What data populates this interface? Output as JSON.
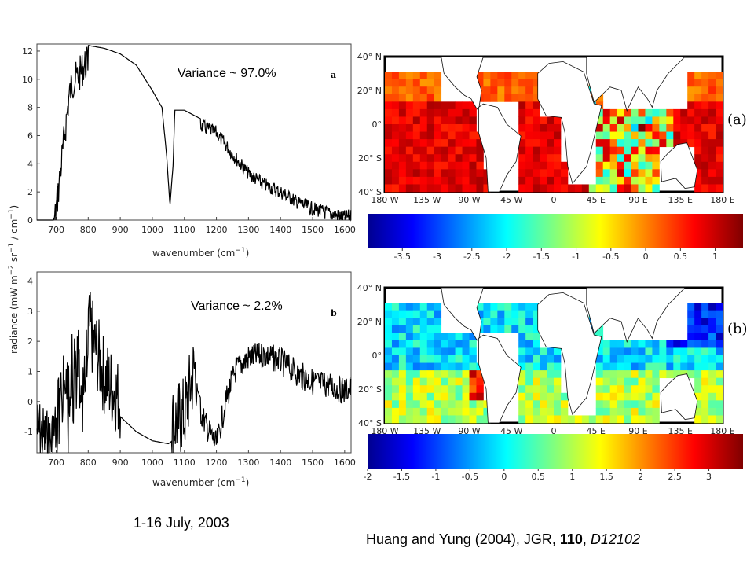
{
  "chart_data": [
    {
      "type": "line",
      "panel": "a",
      "annotation": "Variance ~ 97.0%",
      "xlabel_text": "wavenumber (cm",
      "xlabel_exp": "−1",
      "xlabel_close": ")",
      "xlim": [
        640,
        1620
      ],
      "ylim": [
        0,
        12.5
      ],
      "xticks": [
        "700",
        "800",
        "900",
        "1000",
        "1100",
        "1200",
        "1300",
        "1400",
        "1500",
        "1600"
      ],
      "yticks": [
        "0",
        "2",
        "4",
        "6",
        "8",
        "10",
        "12"
      ],
      "series": [
        {
          "x": [
            640,
            688,
            700,
            720,
            740,
            750,
            770,
            790,
            800,
            850,
            900,
            950,
            1000,
            1030,
            1045,
            1055,
            1065,
            1070,
            1100,
            1150,
            1200,
            1250,
            1300,
            1350,
            1400,
            1450,
            1500,
            1550,
            1600,
            1620
          ],
          "values": [
            0,
            0,
            2,
            6,
            10,
            11,
            11.5,
            12.3,
            12.4,
            12.2,
            11.8,
            11,
            9.2,
            8,
            4.5,
            1,
            4,
            7.8,
            7.8,
            7.2,
            6.7,
            5.2,
            3.8,
            3,
            2.5,
            1.8,
            1.3,
            1,
            0.7,
            0.8
          ]
        }
      ]
    },
    {
      "type": "line",
      "panel": "b",
      "annotation": "Variance ~ 2.2%",
      "ylabel_html": "radiance (mW m<sup>−2</sup> sr<sup>−1</sup> / cm<sup>−1</sup>)",
      "xlabel_text": "wavenumber (cm",
      "xlabel_exp": "−1",
      "xlabel_close": ")",
      "xlim": [
        640,
        1620
      ],
      "ylim": [
        -1.7,
        4.3
      ],
      "xticks": [
        "700",
        "800",
        "900",
        "1000",
        "1100",
        "1200",
        "1300",
        "1400",
        "1500",
        "1600"
      ],
      "yticks": [
        "-1",
        "0",
        "1",
        "2",
        "3",
        "4"
      ],
      "series": [
        {
          "x": [
            640,
            680,
            720,
            750,
            780,
            800,
            850,
            900,
            950,
            1000,
            1050,
            1100,
            1130,
            1140,
            1170,
            1200,
            1230,
            1260,
            1300,
            1350,
            1400,
            1450,
            1500,
            1550,
            1600,
            1620
          ],
          "values": [
            0.2,
            -0.3,
            0.8,
            1.5,
            1.5,
            2,
            0.3,
            -0.5,
            -1,
            -1.3,
            -1.4,
            -1,
            0.5,
            0.4,
            -0.4,
            -1,
            0.5,
            1.5,
            1.9,
            2,
            1.8,
            1.4,
            1.1,
            1,
            0.8,
            0.9
          ]
        }
      ]
    },
    {
      "type": "heatmap",
      "panel": "(a)",
      "lat_labels": [
        "40° N",
        "20° N",
        "0°",
        "20° S",
        "40° S"
      ],
      "lon_labels": [
        "180 W",
        "135 W",
        "90 W",
        "45 W",
        "0",
        "45 E",
        "90 E",
        "135 E",
        "180 E"
      ],
      "colorbar_ticks": [
        "-3.5",
        "-3",
        "-2.5",
        "-2",
        "-1.5",
        "-1",
        "-0.5",
        "0",
        "0.5",
        "1"
      ],
      "colorbar_range": [
        -4,
        1.4
      ]
    },
    {
      "type": "heatmap",
      "panel": "(b)",
      "lat_labels": [
        "40° N",
        "20° N",
        "0°",
        "20° S",
        "40° S"
      ],
      "lon_labels": [
        "180 W",
        "135 W",
        "90 W",
        "45 W",
        "0",
        "45 E",
        "90 E",
        "135 E",
        "180 E"
      ],
      "colorbar_ticks": [
        "-2",
        "-1.5",
        "-1",
        "-0.5",
        "0",
        "0.5",
        "1",
        "1.5",
        "2",
        "2.5",
        "3"
      ],
      "colorbar_range": [
        -2,
        3.5
      ]
    }
  ],
  "footer": {
    "date": "1-16 July, 2003",
    "citation_prefix": "Huang and Yung (2004), JGR, ",
    "citation_volume": "110",
    "citation_sep": ", ",
    "citation_id": "D12102"
  }
}
